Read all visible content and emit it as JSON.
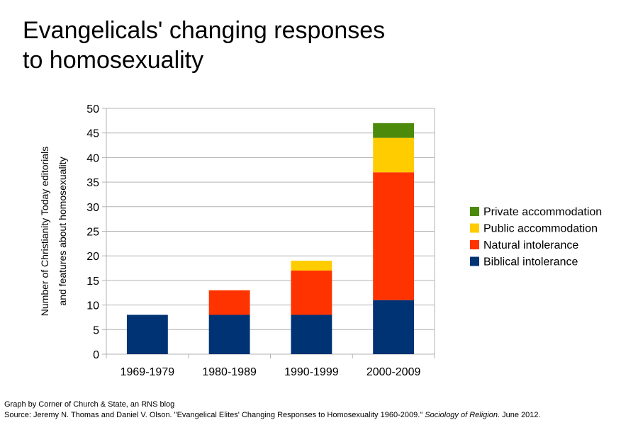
{
  "chart_data": {
    "type": "bar",
    "stacked": true,
    "title_lines": [
      "Evangelicals' changing responses",
      "to homosexuality"
    ],
    "ylabel_lines": [
      "Number of Christianity Today editorials",
      "and features about homosexuality"
    ],
    "xlabel": "",
    "categories": [
      "1969-1979",
      "1980-1989",
      "1990-1999",
      "2000-2009"
    ],
    "ylim": [
      0,
      50
    ],
    "yticks": [
      0,
      5,
      10,
      15,
      20,
      25,
      30,
      35,
      40,
      45,
      50
    ],
    "grid": true,
    "legend_position": "right",
    "series": [
      {
        "name": "Biblical intolerance",
        "color": "#003373",
        "values": [
          8,
          8,
          8,
          11
        ]
      },
      {
        "name": "Natural intolerance",
        "color": "#ff3300",
        "values": [
          0,
          5,
          9,
          26
        ]
      },
      {
        "name": "Public accommodation",
        "color": "#ffcc00",
        "values": [
          0,
          0,
          2,
          7
        ]
      },
      {
        "name": "Private accommodation",
        "color": "#4c8a0c",
        "values": [
          0,
          0,
          0,
          3
        ]
      }
    ]
  },
  "footer": {
    "credit": "Graph by Corner of Church & State, an RNS blog",
    "source_prefix": "Source: Jeremy N. Thomas and Daniel V. Olson. \"Evangelical Elites' Changing Responses to Homosexuality 1960-2009.\" ",
    "source_journal": "Sociology of Religion",
    "source_suffix": ". June 2012."
  }
}
